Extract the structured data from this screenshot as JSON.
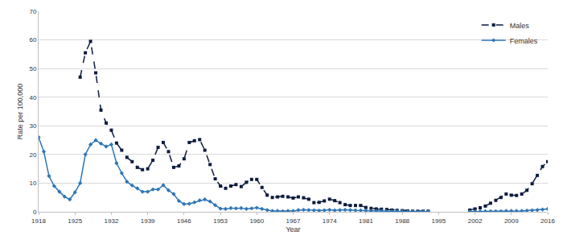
{
  "chart_data": {
    "type": "line",
    "x_label": "Year",
    "y_label": "Rate per 100,000",
    "x": [
      1918,
      1919,
      1920,
      1921,
      1922,
      1923,
      1924,
      1925,
      1926,
      1927,
      1928,
      1929,
      1930,
      1931,
      1932,
      1933,
      1934,
      1935,
      1936,
      1937,
      1938,
      1939,
      1940,
      1941,
      1942,
      1943,
      1944,
      1945,
      1946,
      1947,
      1948,
      1949,
      1950,
      1951,
      1952,
      1953,
      1954,
      1955,
      1956,
      1957,
      1958,
      1959,
      1960,
      1961,
      1962,
      1963,
      1964,
      1965,
      1966,
      1967,
      1968,
      1969,
      1970,
      1971,
      1972,
      1973,
      1974,
      1975,
      1976,
      1977,
      1978,
      1979,
      1980,
      1981,
      1982,
      1983,
      1984,
      1985,
      1986,
      1987,
      1988,
      1989,
      1990,
      1991,
      1992,
      1993,
      1994,
      1995,
      1996,
      1997,
      1998,
      1999,
      2000,
      2001,
      2002,
      2003,
      2004,
      2005,
      2006,
      2007,
      2008,
      2009,
      2010,
      2011,
      2012,
      2013,
      2014,
      2015,
      2016
    ],
    "series": [
      {
        "name": "Males",
        "color": "#0d1b3e",
        "marker": "square",
        "line_style": "dashed",
        "values": [
          null,
          null,
          null,
          null,
          null,
          null,
          null,
          null,
          47,
          55.5,
          59.5,
          48.5,
          35.5,
          31,
          28.5,
          24,
          21.5,
          19,
          17.5,
          15.5,
          14.7,
          15,
          18,
          22.5,
          24.2,
          21,
          15.5,
          16,
          18.5,
          24.2,
          24.8,
          25.2,
          21.5,
          16.5,
          11.5,
          9,
          8.2,
          9,
          9.5,
          8.8,
          10.3,
          11.3,
          11.3,
          8.5,
          5.8,
          5,
          5.2,
          5.4,
          5.2,
          4.8,
          5.2,
          4.9,
          4.4,
          3.2,
          3.3,
          3.8,
          4.4,
          3.9,
          3.2,
          2.5,
          2.2,
          2.2,
          2.2,
          1.5,
          1.2,
          1.0,
          0.9,
          0.8,
          0.6,
          0.5,
          0.4,
          0.3,
          0.2,
          0.2,
          0.2,
          0.2,
          null,
          null,
          null,
          null,
          null,
          null,
          null,
          0.6,
          1.0,
          1.4,
          2.0,
          3.0,
          4.0,
          5.0,
          6.2,
          5.8,
          5.7,
          6.2,
          7.5,
          9.8,
          12.7,
          15.8,
          17.5
        ]
      },
      {
        "name": "Females",
        "color": "#2e75b6",
        "marker": "diamond",
        "line_style": "solid",
        "values": [
          26,
          21,
          12.5,
          9,
          7,
          5.3,
          4.3,
          6.8,
          10,
          20,
          23.5,
          25,
          23.8,
          22.8,
          23.5,
          17,
          13.5,
          10.5,
          9.2,
          8.2,
          7,
          7,
          7.8,
          7.8,
          9.3,
          7.5,
          6.2,
          3.8,
          2.7,
          2.8,
          3.3,
          4,
          4.3,
          3.6,
          2.3,
          1.1,
          1,
          1.3,
          1.2,
          1.3,
          1,
          1.2,
          1.4,
          1,
          0.6,
          0.3,
          0.3,
          0.2,
          0.3,
          0.3,
          0.6,
          0.7,
          0.6,
          0.5,
          0.4,
          0.5,
          0.7,
          0.5,
          0.6,
          0.7,
          0.6,
          0.5,
          0.5,
          0.4,
          0.3,
          0.3,
          0.3,
          0.2,
          0.2,
          0.2,
          0.2,
          0.1,
          0.1,
          0.1,
          0.1,
          0.1,
          null,
          null,
          null,
          null,
          null,
          null,
          null,
          0.1,
          0.1,
          0.15,
          0.2,
          0.2,
          0.2,
          0.2,
          0.3,
          0.3,
          0.3,
          0.3,
          0.4,
          0.5,
          0.6,
          0.8,
          1.0
        ]
      }
    ],
    "xlim": [
      1918,
      2016
    ],
    "xticks": [
      1918,
      1925,
      1932,
      1939,
      1946,
      1953,
      1960,
      1967,
      1974,
      1981,
      1988,
      1995,
      2002,
      2009,
      2016
    ],
    "ylim": [
      0,
      70
    ],
    "yticks": [
      0,
      10,
      20,
      30,
      40,
      50,
      60,
      70
    ],
    "grid": true,
    "legend": "top-right"
  }
}
